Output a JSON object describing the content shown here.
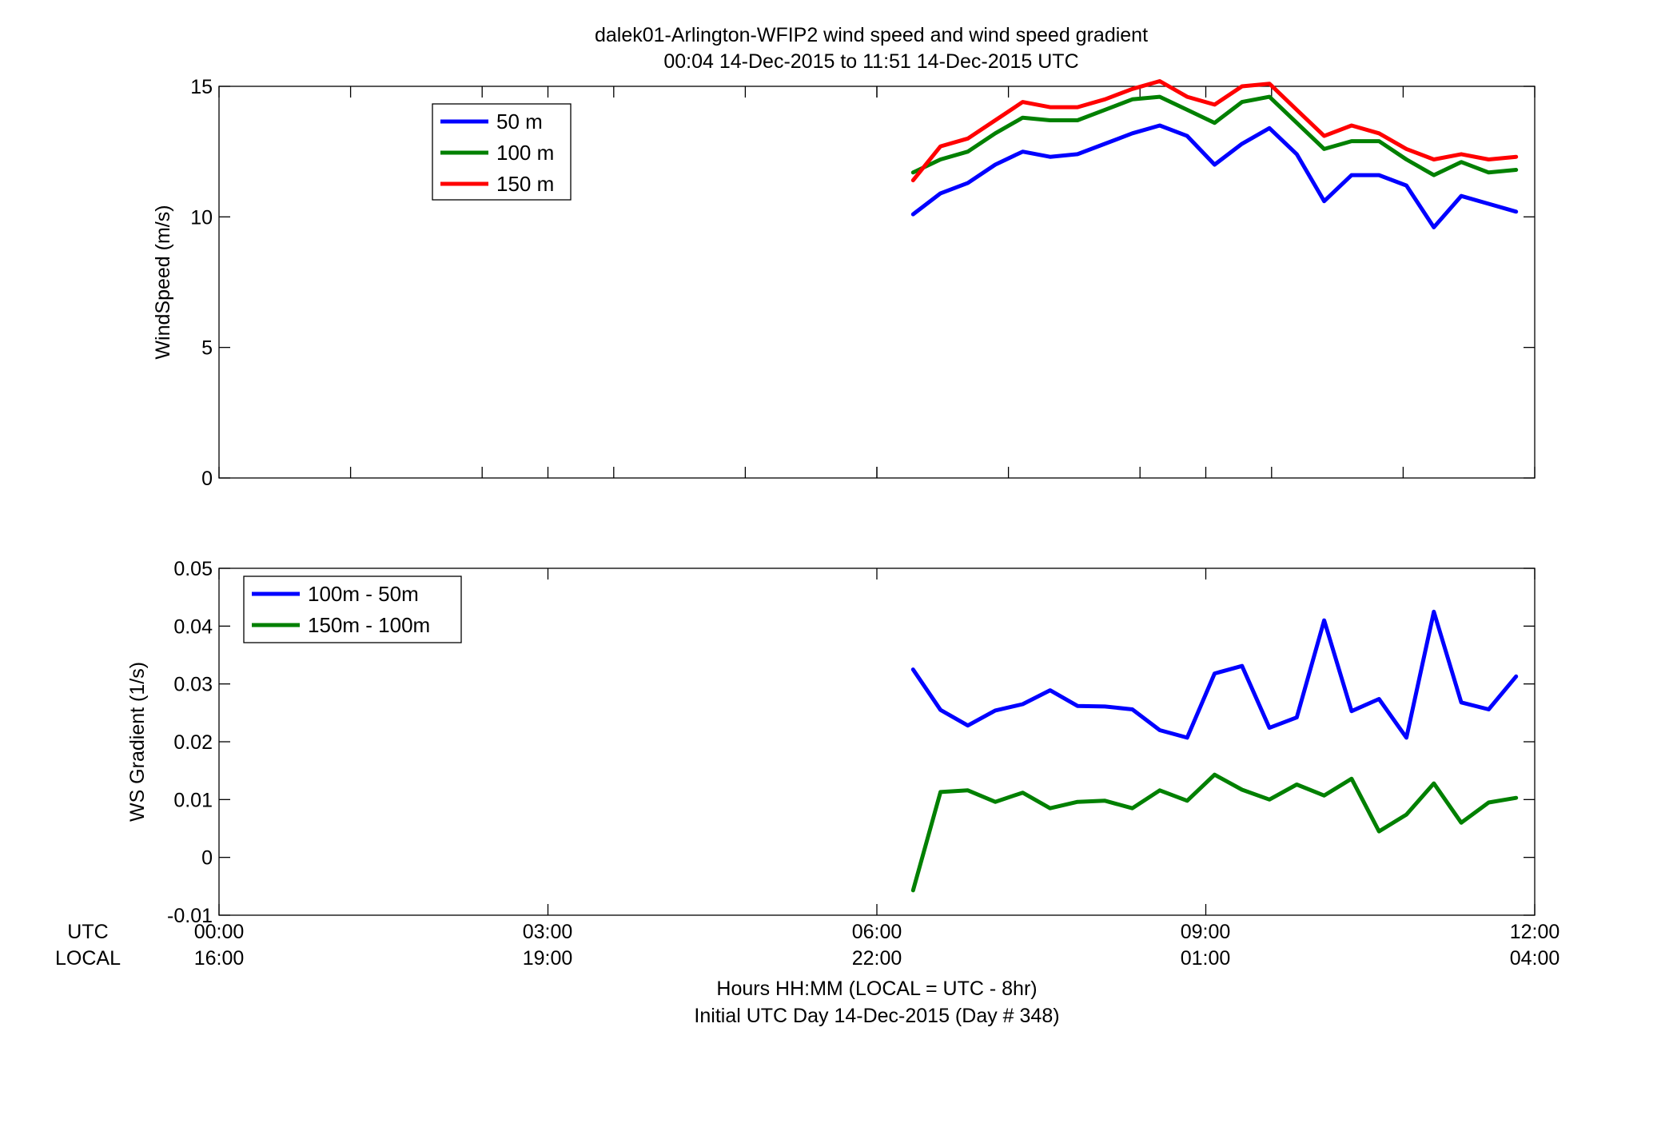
{
  "figure": {
    "title_line1": "dalek01-Arlington-WFIP2  wind speed and wind speed gradient",
    "title_line2": "00:04 14-Dec-2015 to 11:51 14-Dec-2015  UTC",
    "row_label_utc": "UTC",
    "row_label_local": "LOCAL",
    "xlabel_line1": "Hours HH:MM  (LOCAL = UTC - 8hr)",
    "xlabel_line2": "Initial UTC Day 14-Dec-2015 (Day # 348)",
    "utc_ticks": [
      "00:00",
      "03:00",
      "06:00",
      "09:00",
      "12:00"
    ],
    "local_ticks": [
      "16:00",
      "19:00",
      "22:00",
      "01:00",
      "04:00"
    ]
  },
  "chart_data": [
    {
      "type": "line",
      "ylabel": "WindSpeed (m/s)",
      "xlim": [
        0,
        12
      ],
      "ylim": [
        0,
        15
      ],
      "x_major_ticks_hours": [
        0,
        3,
        6,
        9,
        12
      ],
      "x_minor_ticks_hours": [
        1.2,
        2.4,
        3.6,
        4.8,
        6.0,
        7.2,
        8.4,
        9.6,
        10.8
      ],
      "yticks": [
        0,
        5,
        10,
        15
      ],
      "ytick_labels": [
        "0",
        "5",
        "10",
        "15"
      ],
      "grid": false,
      "legend_position": "top-left",
      "x": [
        6.33,
        6.58,
        6.83,
        7.08,
        7.33,
        7.58,
        7.83,
        8.08,
        8.33,
        8.58,
        8.83,
        9.08,
        9.33,
        9.58,
        9.83,
        10.08,
        10.33,
        10.58,
        10.83,
        11.08,
        11.33,
        11.58,
        11.83
      ],
      "series": [
        {
          "name": "50 m",
          "color": "#0000ff",
          "values": [
            10.1,
            10.9,
            11.3,
            12.0,
            12.5,
            12.3,
            12.4,
            12.8,
            13.2,
            13.5,
            13.1,
            12.0,
            12.8,
            13.4,
            12.4,
            10.6,
            11.6,
            11.6,
            11.2,
            9.6,
            10.8,
            10.5,
            10.2
          ]
        },
        {
          "name": "100 m",
          "color": "#008000",
          "values": [
            11.7,
            12.2,
            12.5,
            13.2,
            13.8,
            13.7,
            13.7,
            14.1,
            14.5,
            14.6,
            14.1,
            13.6,
            14.4,
            14.6,
            13.6,
            12.6,
            12.9,
            12.9,
            12.2,
            11.6,
            12.1,
            11.7,
            11.8
          ]
        },
        {
          "name": "150 m",
          "color": "#ff0000",
          "values": [
            11.4,
            12.7,
            13.0,
            13.7,
            14.4,
            14.2,
            14.2,
            14.5,
            14.9,
            15.2,
            14.6,
            14.3,
            15.0,
            15.1,
            14.1,
            13.1,
            13.5,
            13.2,
            12.6,
            12.2,
            12.4,
            12.2,
            12.3
          ]
        }
      ]
    },
    {
      "type": "line",
      "ylabel": "WS Gradient (1/s)",
      "xlim": [
        0,
        12
      ],
      "ylim": [
        -0.01,
        0.05
      ],
      "x_major_ticks_hours": [
        0,
        3,
        6,
        9,
        12
      ],
      "yticks": [
        -0.01,
        0,
        0.01,
        0.02,
        0.03,
        0.04,
        0.05
      ],
      "ytick_labels": [
        "-0.01",
        "0",
        "0.01",
        "0.02",
        "0.03",
        "0.04",
        "0.05"
      ],
      "grid": false,
      "legend_position": "top-left",
      "x": [
        6.33,
        6.58,
        6.83,
        7.08,
        7.33,
        7.58,
        7.83,
        8.08,
        8.33,
        8.58,
        8.83,
        9.08,
        9.33,
        9.58,
        9.83,
        10.08,
        10.33,
        10.58,
        10.83,
        11.08,
        11.33,
        11.58,
        11.83
      ],
      "series": [
        {
          "name": "100m - 50m",
          "color": "#0000ff",
          "values": [
            0.0325,
            0.0255,
            0.0228,
            0.0254,
            0.0265,
            0.0289,
            0.0262,
            0.0261,
            0.0256,
            0.022,
            0.0207,
            0.0318,
            0.0331,
            0.0224,
            0.0242,
            0.041,
            0.0253,
            0.0274,
            0.0207,
            0.0425,
            0.0268,
            0.0256,
            0.0313
          ]
        },
        {
          "name": "150m - 100m",
          "color": "#008000",
          "values": [
            -0.0057,
            0.0113,
            0.0116,
            0.0096,
            0.0112,
            0.0085,
            0.0096,
            0.0098,
            0.0085,
            0.0116,
            0.0098,
            0.0143,
            0.0117,
            0.01,
            0.0126,
            0.0107,
            0.0136,
            0.0045,
            0.0074,
            0.0128,
            0.006,
            0.0095,
            0.0103
          ]
        }
      ]
    }
  ]
}
